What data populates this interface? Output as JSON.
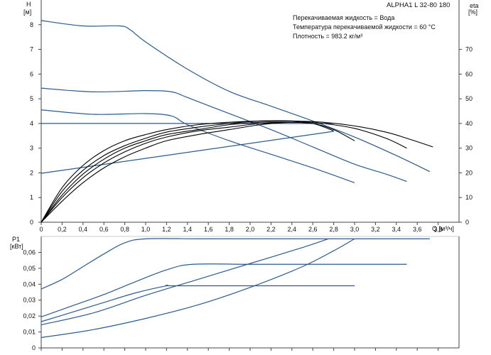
{
  "header": {
    "title": "ALPHA1 L 32-80  180",
    "info": [
      "Перекачиваемая жидкость = Вода",
      "Температура перекачиваемой жидкости = 60 °C",
      "Плотность = 983.2 кг/м³"
    ]
  },
  "colors": {
    "head": "#2b5a8f",
    "efficiency": "#000000",
    "axis": "#444444",
    "grid": "#9a9a9a"
  },
  "chart_data": [
    {
      "type": "line",
      "name": "head-efficiency",
      "xlabel": "Q [м³/ч]",
      "ylabel_left": "H [м]",
      "ylabel_right": "eta [%]",
      "xlim": [
        0,
        4
      ],
      "ylim_left": [
        0,
        9
      ],
      "ylim_right": [
        0,
        90
      ],
      "xticks": [
        "0",
        "0,2",
        "0,4",
        "0,6",
        "0,8",
        "1,0",
        "1,2",
        "1,4",
        "1,6",
        "1,8",
        "2,0",
        "2,2",
        "2,4",
        "2,6",
        "2,8",
        "3,0",
        "3,2",
        "3,4",
        "3,6",
        "3,8"
      ],
      "yticks_left": [
        "0",
        "1",
        "2",
        "3",
        "4",
        "5",
        "6",
        "7",
        "8"
      ],
      "yticks_right": [
        "0",
        "10",
        "20",
        "30",
        "40",
        "50",
        "60",
        "70"
      ],
      "grid": false,
      "head_curves": [
        {
          "x": [
            0,
            0.4,
            0.75,
            0.85,
            1.0,
            1.4,
            1.8,
            2.2,
            2.6,
            3.0,
            3.4,
            3.72
          ],
          "y": [
            8.17,
            7.95,
            7.95,
            7.8,
            7.3,
            6.2,
            5.3,
            4.7,
            4.1,
            3.45,
            2.7,
            2.05
          ]
        },
        {
          "x": [
            0,
            0.5,
            1.0,
            1.25,
            1.4,
            1.8,
            2.2,
            2.6,
            3.0,
            3.3,
            3.5
          ],
          "y": [
            5.43,
            5.28,
            5.33,
            5.28,
            5.05,
            4.4,
            3.75,
            3.05,
            2.35,
            1.95,
            1.65
          ]
        },
        {
          "x": [
            0,
            0.5,
            1.0,
            1.25,
            1.4,
            1.8,
            2.2,
            2.6,
            3.0
          ],
          "y": [
            4.55,
            4.37,
            4.4,
            4.3,
            3.95,
            3.3,
            2.75,
            2.2,
            1.6
          ]
        },
        {
          "x": [
            0,
            2.0,
            2.6,
            2.8
          ],
          "y": [
            4.0,
            4.0,
            4.0,
            4.0
          ]
        },
        {
          "x": [
            0,
            2.8
          ],
          "y": [
            1.98,
            3.68
          ]
        }
      ],
      "efficiency_curves": [
        {
          "x": [
            0,
            0.2,
            0.4,
            0.6,
            0.8,
            1.0,
            1.2,
            1.5,
            1.8,
            2.1,
            2.4,
            2.7,
            3.0,
            3.3,
            3.5,
            3.75
          ],
          "y": [
            0,
            14,
            23,
            29,
            33,
            35.5,
            37.5,
            39.5,
            40.5,
            41,
            41,
            40.5,
            39,
            36.5,
            34,
            30.5
          ]
        },
        {
          "x": [
            0,
            0.2,
            0.4,
            0.6,
            0.8,
            1.0,
            1.2,
            1.5,
            1.8,
            2.1,
            2.4,
            2.7,
            3.0,
            3.3,
            3.5
          ],
          "y": [
            0,
            12.5,
            21,
            27,
            31,
            34,
            36.5,
            38.5,
            40,
            41,
            41,
            40,
            38,
            34,
            30
          ]
        },
        {
          "x": [
            0,
            0.2,
            0.4,
            0.6,
            0.8,
            1.0,
            1.2,
            1.5,
            1.8,
            2.1,
            2.4,
            2.6,
            2.8,
            3.0
          ],
          "y": [
            0,
            11,
            19.5,
            25.5,
            30,
            33,
            35.5,
            37.5,
            39.5,
            40.5,
            40.5,
            40,
            37.5,
            33
          ]
        },
        {
          "x": [
            0,
            0.2,
            0.4,
            0.6,
            0.8,
            1.0,
            1.2,
            1.5,
            1.8,
            2.1,
            2.4,
            2.6,
            2.8
          ],
          "y": [
            0,
            10,
            18,
            24,
            28.5,
            32,
            34.5,
            37,
            38.5,
            40,
            40.5,
            40,
            37
          ]
        },
        {
          "x": [
            0,
            0.2,
            0.4,
            0.6,
            0.8,
            1.0,
            1.2,
            1.5,
            1.8,
            2.1,
            2.4,
            2.6
          ],
          "y": [
            0,
            8.5,
            16,
            22,
            26.5,
            30,
            33,
            35.5,
            37.5,
            39.5,
            40.5,
            40
          ]
        }
      ]
    },
    {
      "type": "line",
      "name": "power",
      "ylabel": "P1 [кВт]",
      "xlim": [
        0,
        4
      ],
      "ylim": [
        0,
        0.07
      ],
      "yticks": [
        "0",
        "0,01",
        "0,02",
        "0,03",
        "0,04",
        "0,05",
        "0,06"
      ],
      "grid": false,
      "curves": [
        {
          "x": [
            0,
            0.2,
            0.4,
            0.6,
            0.8,
            1.0,
            1.5,
            2.0,
            2.5,
            3.0,
            3.5,
            3.72
          ],
          "y": [
            0.037,
            0.043,
            0.051,
            0.059,
            0.066,
            0.0685,
            0.0685,
            0.0685,
            0.0685,
            0.0685,
            0.0685,
            0.0685
          ]
        },
        {
          "x": [
            0,
            0.3,
            0.6,
            0.9,
            1.2,
            1.45,
            2.0,
            2.5,
            3.0,
            3.5
          ],
          "y": [
            0.0195,
            0.0265,
            0.0335,
            0.0415,
            0.049,
            0.0525,
            0.0525,
            0.0525,
            0.0525,
            0.0525
          ]
        },
        {
          "x": [
            0,
            0.3,
            0.6,
            0.9,
            1.2,
            1.25,
            2.0,
            2.5,
            3.0
          ],
          "y": [
            0.0165,
            0.0225,
            0.0285,
            0.0345,
            0.039,
            0.039,
            0.039,
            0.039,
            0.039
          ]
        },
        {
          "x": [
            0,
            0.5,
            1.0,
            1.5,
            2.0,
            2.5,
            2.75
          ],
          "y": [
            0.0145,
            0.022,
            0.033,
            0.043,
            0.053,
            0.063,
            0.0685
          ]
        },
        {
          "x": [
            0,
            0.5,
            1.0,
            1.5,
            2.0,
            2.5,
            2.8,
            3.0
          ],
          "y": [
            0.0065,
            0.0115,
            0.0185,
            0.027,
            0.038,
            0.051,
            0.061,
            0.0685
          ]
        }
      ]
    }
  ]
}
